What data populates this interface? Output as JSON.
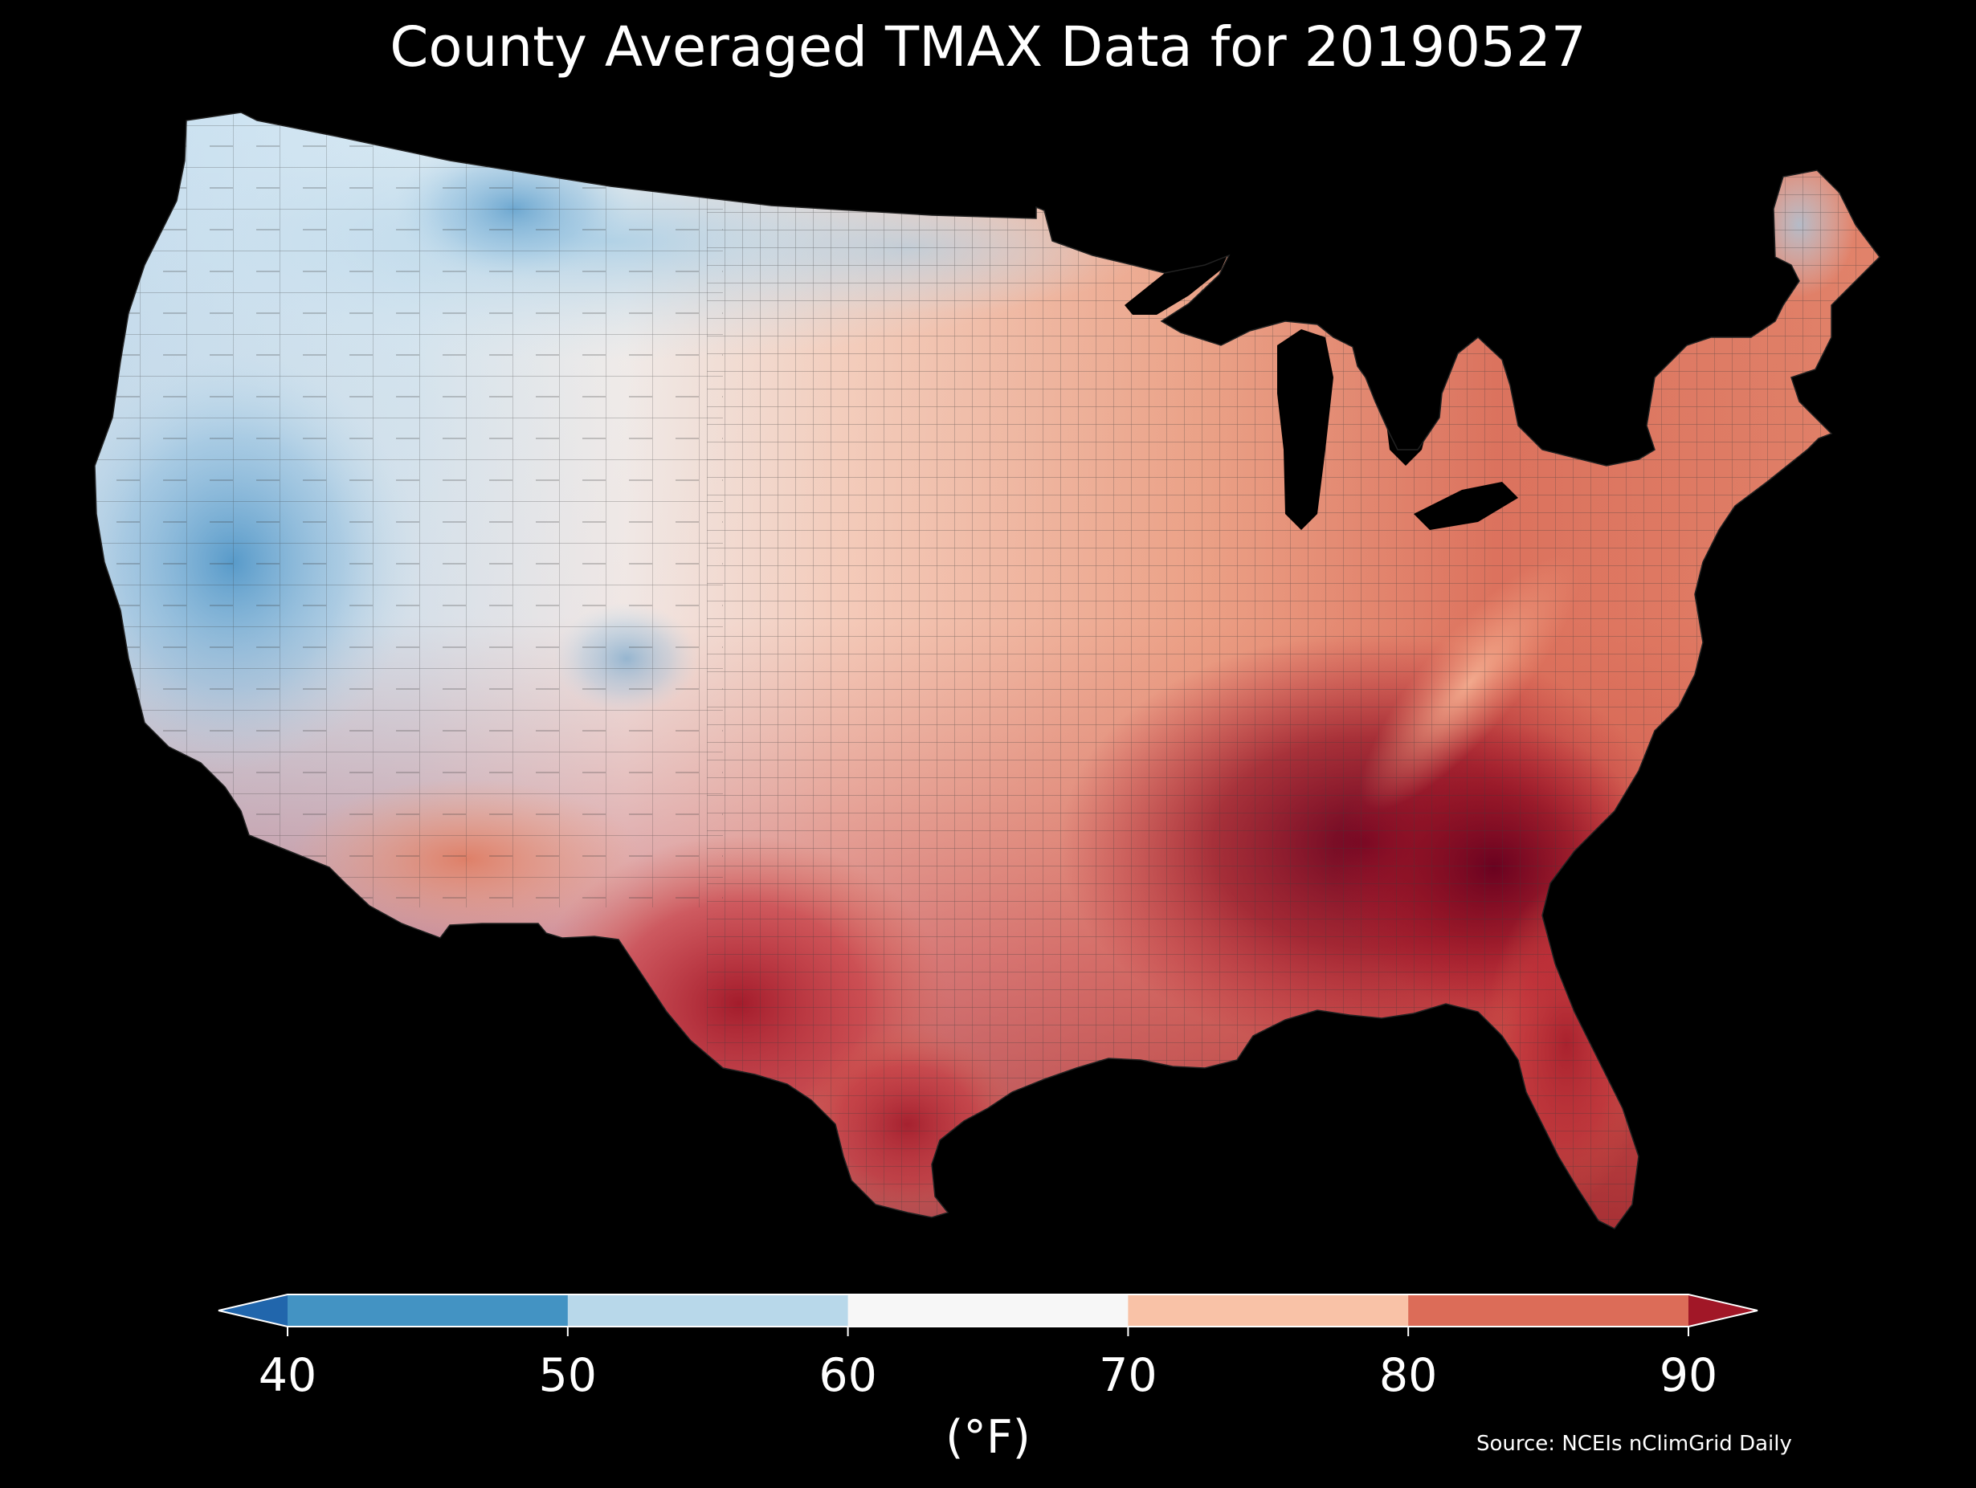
{
  "title": "County Averaged TMAX Data for 20190527",
  "colorbar": {
    "ticks": [
      "40",
      "50",
      "60",
      "70",
      "80",
      "90"
    ],
    "unit": "(°F)",
    "bins": [
      {
        "from": null,
        "to": 40,
        "color": "#2166ac"
      },
      {
        "from": 40,
        "to": 50,
        "color": "#4393c3"
      },
      {
        "from": 50,
        "to": 60,
        "color": "#b8d8ea"
      },
      {
        "from": 60,
        "to": 70,
        "color": "#f7f7f7"
      },
      {
        "from": 70,
        "to": 80,
        "color": "#f9c2a7"
      },
      {
        "from": 80,
        "to": 90,
        "color": "#dc6c58"
      },
      {
        "from": 90,
        "to": null,
        "color": "#a11727"
      }
    ]
  },
  "source": "Source: NCEIs nClimGrid Daily",
  "map": {
    "type": "choropleth",
    "region": "contiguous-us-counties",
    "variable": "TMAX",
    "date": "20190527",
    "background_color": "#000000",
    "border_color": "#3a3a3a"
  }
}
